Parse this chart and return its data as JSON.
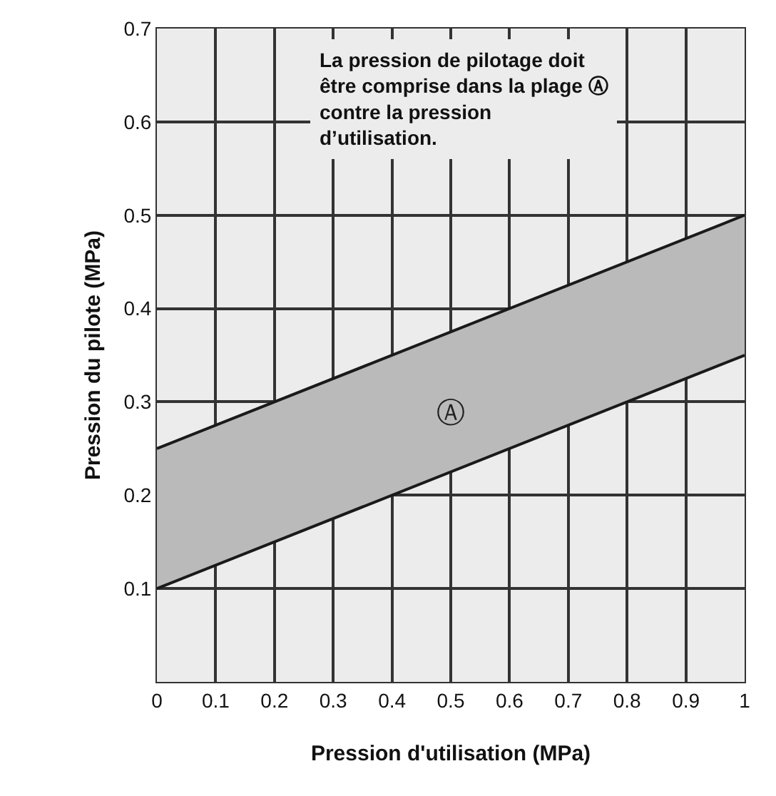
{
  "chart_data": {
    "type": "line",
    "xlabel": "Pression d'utilisation (MPa)",
    "ylabel": "Pression du pilote (MPa)",
    "x": [
      0,
      1
    ],
    "series": [
      {
        "color": "#1a1a1a",
        "values": [
          0.1,
          0.35
        ]
      },
      {
        "type": "area",
        "color": "#bababa",
        "values": [
          0.25,
          0.5
        ]
      }
    ],
    "xlim": [
      0,
      1
    ],
    "xticks": [
      0,
      0.1,
      0.2,
      0.3,
      0.4,
      0.5,
      0.6,
      0.7,
      0.8,
      0.9,
      1
    ],
    "ylim": [
      0,
      0.7
    ],
    "yticks": [
      0.1,
      0.2,
      0.3,
      0.4,
      0.5,
      0.6,
      0.7
    ],
    "grid": true,
    "legend": false,
    "marker": "none",
    "line_style": "solid",
    "annotations": [
      "La pression de pilotage doit être comprise dans la plage Ⓐ contre la pression d’utilisation.",
      "Ⓐ"
    ]
  }
}
